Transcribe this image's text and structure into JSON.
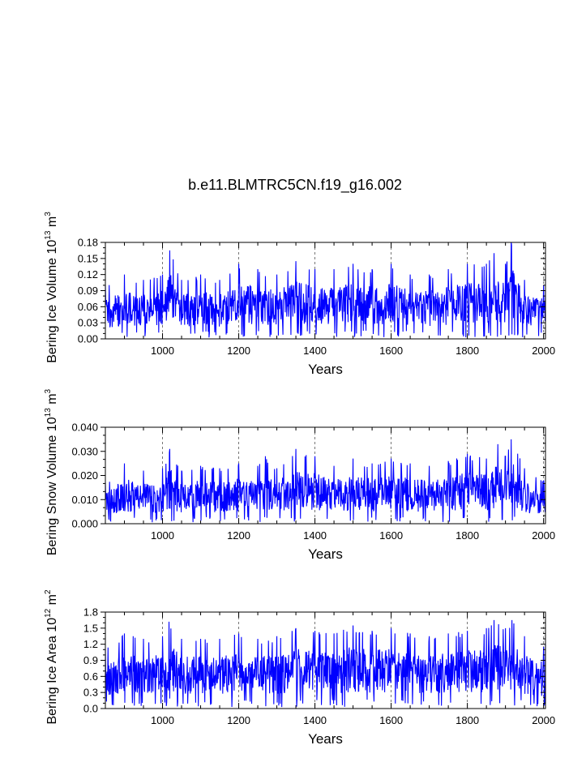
{
  "figure": {
    "title": "b.e11.BLMTRC5CN.f19_g16.002"
  },
  "chart_data": [
    {
      "type": "line",
      "title": "",
      "ylabel_base": "Bering Ice Volume 10",
      "ylabel_exp": "13",
      "ylabel_unit": "m",
      "ylabel_unit_exp": "3",
      "xlabel": "Years",
      "xlim": [
        850,
        2005
      ],
      "ylim": [
        0.0,
        0.18
      ],
      "yticks": [
        0.0,
        0.03,
        0.06,
        0.09,
        0.12,
        0.15,
        0.18
      ],
      "ytick_labels": [
        "0.00",
        "0.03",
        "0.06",
        "0.09",
        "0.12",
        "0.15",
        "0.18"
      ],
      "xticks": [
        1000,
        1200,
        1400,
        1600,
        1800,
        2000
      ],
      "xtick_labels": [
        "1000",
        "1200",
        "1400",
        "1600",
        "1800",
        "2000"
      ],
      "grid_x": true,
      "series": [
        {
          "name": "Bering Ice Volume",
          "color": "#0000ff",
          "peaks_x": [
            850,
            900,
            950,
            1000,
            1019,
            1050,
            1100,
            1150,
            1200,
            1250,
            1300,
            1350,
            1400,
            1450,
            1500,
            1550,
            1600,
            1650,
            1700,
            1750,
            1800,
            1850,
            1870,
            1900,
            1915,
            1950,
            2000,
            2005
          ],
          "peaks_y": [
            0.1,
            0.12,
            0.11,
            0.12,
            0.165,
            0.11,
            0.12,
            0.11,
            0.14,
            0.13,
            0.12,
            0.145,
            0.13,
            0.13,
            0.14,
            0.13,
            0.14,
            0.12,
            0.12,
            0.13,
            0.14,
            0.14,
            0.16,
            0.14,
            0.18,
            0.11,
            0.1,
            0.09
          ]
        }
      ]
    },
    {
      "type": "line",
      "title": "",
      "ylabel_base": "Bering Snow Volume 10",
      "ylabel_exp": "13",
      "ylabel_unit": "m",
      "ylabel_unit_exp": "3",
      "xlabel": "Years",
      "xlim": [
        850,
        2005
      ],
      "ylim": [
        0.0,
        0.04
      ],
      "yticks": [
        0.0,
        0.01,
        0.02,
        0.03,
        0.04
      ],
      "ytick_labels": [
        "0.000",
        "0.010",
        "0.020",
        "0.030",
        "0.040"
      ],
      "xticks": [
        1000,
        1200,
        1400,
        1600,
        1800,
        2000
      ],
      "xtick_labels": [
        "1000",
        "1200",
        "1400",
        "1600",
        "1800",
        "2000"
      ],
      "grid_x": true,
      "series": [
        {
          "name": "Bering Snow Volume",
          "color": "#0000ff",
          "peaks_x": [
            850,
            900,
            950,
            1000,
            1019,
            1050,
            1100,
            1150,
            1200,
            1250,
            1270,
            1300,
            1350,
            1400,
            1450,
            1500,
            1550,
            1600,
            1650,
            1700,
            1750,
            1800,
            1850,
            1880,
            1900,
            1915,
            1950,
            2000,
            2005
          ],
          "peaks_y": [
            0.017,
            0.025,
            0.022,
            0.023,
            0.031,
            0.022,
            0.024,
            0.023,
            0.025,
            0.024,
            0.028,
            0.023,
            0.031,
            0.028,
            0.024,
            0.027,
            0.025,
            0.027,
            0.025,
            0.024,
            0.026,
            0.029,
            0.027,
            0.033,
            0.028,
            0.035,
            0.023,
            0.018,
            0.014
          ]
        }
      ]
    },
    {
      "type": "line",
      "title": "",
      "ylabel_base": "Bering Ice Area 10",
      "ylabel_exp": "12",
      "ylabel_unit": "m",
      "ylabel_unit_exp": "2",
      "xlabel": "Years",
      "xlim": [
        850,
        2005
      ],
      "ylim": [
        0.0,
        1.8
      ],
      "yticks": [
        0.0,
        0.3,
        0.6,
        0.9,
        1.2,
        1.5,
        1.8
      ],
      "ytick_labels": [
        "0.0",
        "0.3",
        "0.6",
        "0.9",
        "1.2",
        "1.5",
        "1.8"
      ],
      "xticks": [
        1000,
        1200,
        1400,
        1600,
        1800,
        2000
      ],
      "xtick_labels": [
        "1000",
        "1200",
        "1400",
        "1600",
        "1800",
        "2000"
      ],
      "grid_x": true,
      "series": [
        {
          "name": "Bering Ice Area",
          "color": "#0000ff",
          "peaks_x": [
            850,
            900,
            950,
            1000,
            1017,
            1050,
            1100,
            1150,
            1200,
            1250,
            1300,
            1350,
            1400,
            1450,
            1500,
            1550,
            1600,
            1650,
            1700,
            1750,
            1800,
            1850,
            1870,
            1900,
            1917,
            1950,
            2000,
            2005
          ],
          "peaks_y": [
            1.1,
            1.4,
            1.3,
            1.35,
            1.62,
            1.3,
            1.3,
            1.3,
            1.4,
            1.3,
            1.35,
            1.5,
            1.45,
            1.4,
            1.55,
            1.45,
            1.5,
            1.4,
            1.35,
            1.4,
            1.45,
            1.5,
            1.65,
            1.5,
            1.65,
            1.35,
            1.15,
            1.2
          ]
        }
      ]
    }
  ]
}
